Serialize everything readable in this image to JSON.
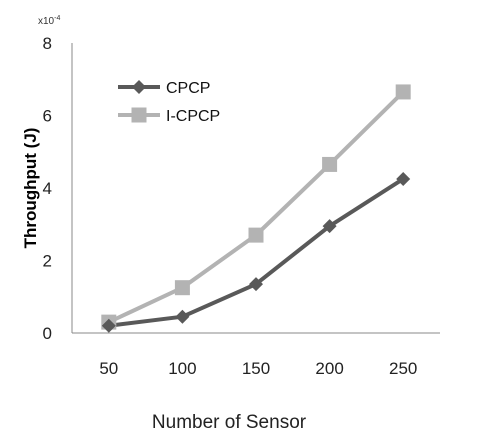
{
  "chart_data": {
    "type": "line",
    "xlabel": "Number of Sensor",
    "ylabel": "Throughput (J)",
    "y_multiplier": "x10^-4",
    "y_multiplier_base": "x10",
    "y_multiplier_exp": "-4",
    "categories": [
      "50",
      "100",
      "150",
      "200",
      "250"
    ],
    "ylim": [
      0,
      8
    ],
    "yticks": [
      "0",
      "2",
      "4",
      "6",
      "8"
    ],
    "legend_position": "top-left",
    "grid": false,
    "series": [
      {
        "name": "CPCP",
        "color": "#595959",
        "marker": "diamond",
        "values": [
          0.2,
          0.45,
          1.35,
          2.95,
          4.25
        ]
      },
      {
        "name": "I-CPCP",
        "color": "#b3b3b3",
        "marker": "square",
        "values": [
          0.3,
          1.25,
          2.7,
          4.65,
          6.65
        ]
      }
    ]
  }
}
